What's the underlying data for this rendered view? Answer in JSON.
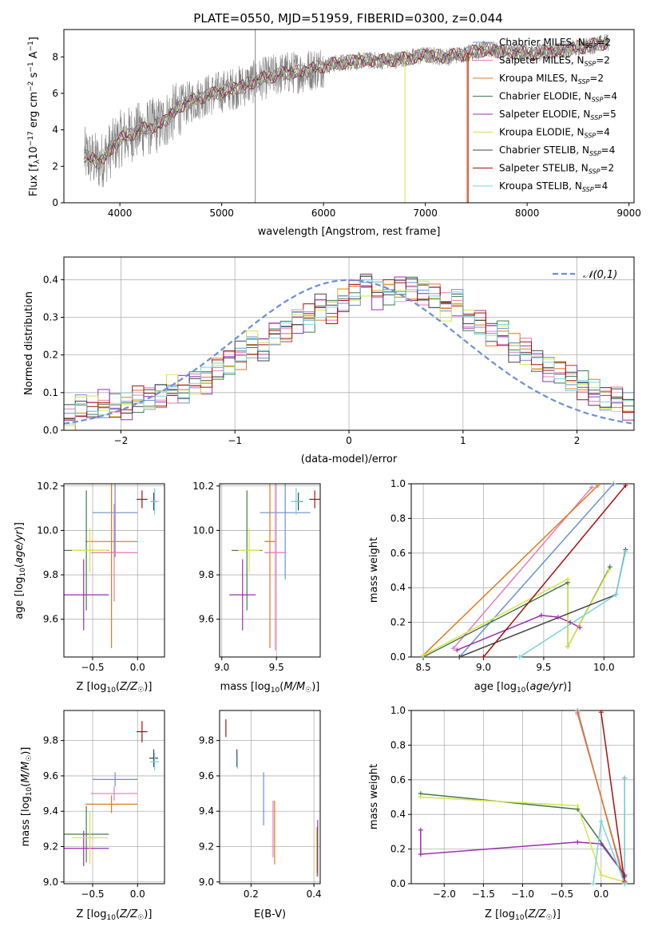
{
  "figure": {
    "title": "PLATE=0550, MJD=51959, FIBERID=0300, z=0.044"
  },
  "model_colors": {
    "Chabrier MILES": "#6a8fd8",
    "Salpeter MILES": "#e879b8",
    "Kroupa MILES": "#e07a1f",
    "Chabrier ELODIE": "#3f7a4f",
    "Salpeter ELODIE": "#9b2fae",
    "Kroupa ELODIE": "#d7e34a",
    "Chabrier STELIB": "#444444",
    "Salpeter STELIB": "#a40f0f",
    "Kroupa STELIB": "#78d3dc"
  },
  "chart_data": [
    {
      "id": "spectrum",
      "type": "line",
      "title": "PLATE=0550, MJD=51959, FIBERID=0300, z=0.044",
      "xlabel": "wavelength [Angstrom, rest frame]",
      "ylabel": "Flux [f_λ 10^-17 erg cm^-2 s^-1 A^-1]",
      "xlim": [
        3450,
        9050
      ],
      "ylim": [
        0,
        9.5
      ],
      "xticks": [
        4000,
        5000,
        6000,
        7000,
        8000,
        9000
      ],
      "yticks": [
        0,
        2,
        4,
        6,
        8
      ],
      "grid": false,
      "legend_position": "top-right",
      "data_color": "#808080",
      "data_wavelength_range": [
        3650,
        8800
      ],
      "data_continuum": {
        "x": [
          3650,
          3800,
          4000,
          4200,
          4400,
          4600,
          4800,
          5000,
          5200,
          5400,
          5600,
          5800,
          6000,
          6200,
          6400,
          6600,
          6800,
          7000,
          7200,
          7400,
          7600,
          7800,
          8000,
          8200,
          8400,
          8600,
          8800
        ],
        "y": [
          2.6,
          2.2,
          3.5,
          4.0,
          4.3,
          5.3,
          5.8,
          6.1,
          6.4,
          6.8,
          7.1,
          7.2,
          7.5,
          7.7,
          7.8,
          7.8,
          7.9,
          8.1,
          8.0,
          8.2,
          8.4,
          8.3,
          8.2,
          8.3,
          8.4,
          8.6,
          8.8
        ]
      },
      "model_spikes": [
        {
          "x": 5330,
          "ylim": [
            0,
            9.5
          ],
          "color": "#808080"
        },
        {
          "x": 6800,
          "ylim": [
            0,
            8.0
          ],
          "color": "#d7e34a"
        },
        {
          "x": 7410,
          "ylim": [
            0,
            8.2
          ],
          "color": "#e07a1f"
        },
        {
          "x": 7420,
          "ylim": [
            0,
            8.2
          ],
          "color": "#a40f0f"
        }
      ],
      "legend": [
        {
          "name": "Chabrier MILES",
          "nssp": "2",
          "color": "#6a8fd8"
        },
        {
          "name": "Salpeter MILES",
          "nssp": "2",
          "color": "#e879b8"
        },
        {
          "name": "Kroupa MILES",
          "nssp": "2",
          "color": "#e07a1f"
        },
        {
          "name": "Chabrier ELODIE",
          "nssp": "4",
          "color": "#3f7a4f"
        },
        {
          "name": "Salpeter ELODIE",
          "nssp": "5",
          "color": "#9b2fae"
        },
        {
          "name": "Kroupa ELODIE",
          "nssp": "4",
          "color": "#d7e34a"
        },
        {
          "name": "Chabrier STELIB",
          "nssp": "4",
          "color": "#444444"
        },
        {
          "name": "Salpeter STELIB",
          "nssp": "2",
          "color": "#a40f0f"
        },
        {
          "name": "Kroupa STELIB",
          "nssp": "4",
          "color": "#78d3dc"
        }
      ]
    },
    {
      "id": "residuals",
      "type": "line",
      "xlabel": "(data-model)/error",
      "ylabel": "Normed distribution",
      "xlim": [
        -2.5,
        2.5
      ],
      "ylim": [
        0,
        0.46
      ],
      "xticks": [
        -2,
        -1,
        0,
        1,
        2
      ],
      "yticks": [
        0.0,
        0.1,
        0.2,
        0.3,
        0.4
      ],
      "grid": true,
      "legend_position": "top-right",
      "reference": {
        "label": "𝒩(0,1)",
        "mu": 0,
        "sigma": 1,
        "color": "#6a8fd8"
      },
      "bin_width": 0.1,
      "bin_start": -2.5,
      "base_shape": [
        0.03,
        0.06,
        0.06,
        0.07,
        0.06,
        0.06,
        0.08,
        0.08,
        0.09,
        0.11,
        0.11,
        0.13,
        0.13,
        0.16,
        0.18,
        0.2,
        0.23,
        0.22,
        0.26,
        0.26,
        0.29,
        0.3,
        0.33,
        0.32,
        0.35,
        0.37,
        0.39,
        0.36,
        0.37,
        0.38,
        0.38,
        0.37,
        0.36,
        0.33,
        0.34,
        0.29,
        0.29,
        0.26,
        0.26,
        0.22,
        0.21,
        0.18,
        0.16,
        0.16,
        0.14,
        0.12,
        0.1,
        0.08,
        0.08,
        0.06
      ]
    },
    {
      "id": "age_vs_Z",
      "type": "scatter",
      "xlabel": "Z [log10(Z/Z☉)]",
      "ylabel": "age  [log10(age/yr)]",
      "xlim": [
        -0.82,
        0.3
      ],
      "ylim": [
        9.43,
        10.21
      ],
      "xticks": [
        -0.5,
        0.0
      ],
      "yticks": [
        9.6,
        9.8,
        10.0,
        10.2
      ],
      "grid": true,
      "points": [
        {
          "model": "Chabrier MILES",
          "color": "#6a8fd8",
          "x": -0.25,
          "y": 10.08,
          "xerr": 0.25,
          "yerr": 0.2
        },
        {
          "model": "Salpeter MILES",
          "color": "#e879b8",
          "x": -0.26,
          "y": 9.9,
          "xerr": 0.26,
          "yerr": 0.22
        },
        {
          "model": "Kroupa MILES",
          "color": "#e07a1f",
          "x": -0.29,
          "y": 9.95,
          "xerr": 0.29,
          "yerr": 0.48
        },
        {
          "model": "Chabrier ELODIE",
          "color": "#3f7a4f",
          "x": -0.57,
          "y": 9.91,
          "xerr": 0.25,
          "yerr": 0.27
        },
        {
          "model": "Salpeter ELODIE",
          "color": "#9b2fae",
          "x": -0.6,
          "y": 9.71,
          "xerr": 0.28,
          "yerr": 0.16
        },
        {
          "model": "Kroupa ELODIE",
          "color": "#d7e34a",
          "x": -0.53,
          "y": 9.91,
          "xerr": 0.2,
          "yerr": 0.1
        },
        {
          "model": "Chabrier STELIB",
          "color": "#444444",
          "x": 0.18,
          "y": 10.13,
          "xerr": 0.03,
          "yerr": 0.04
        },
        {
          "model": "Salpeter STELIB",
          "color": "#a40f0f",
          "x": 0.05,
          "y": 10.14,
          "xerr": 0.06,
          "yerr": 0.04
        },
        {
          "model": "Kroupa STELIB",
          "color": "#78d3dc",
          "x": 0.19,
          "y": 10.13,
          "xerr": 0.05,
          "yerr": 0.06
        }
      ]
    },
    {
      "id": "age_vs_mass",
      "type": "scatter",
      "xlabel": "mass [log10(M/M☉)]",
      "ylabel": "",
      "xlim": [
        8.98,
        9.9
      ],
      "ylim": [
        9.43,
        10.21
      ],
      "xticks": [
        9.0,
        9.5
      ],
      "yticks": [
        9.6,
        9.8,
        10.0,
        10.2
      ],
      "grid": true,
      "points": [
        {
          "model": "Chabrier MILES",
          "color": "#6a8fd8",
          "x": 9.58,
          "y": 10.08,
          "xerr": 0.23,
          "yerr": 0.3
        },
        {
          "model": "Salpeter MILES",
          "color": "#e879b8",
          "x": 9.49,
          "y": 9.9,
          "xerr": 0.1,
          "yerr": 0.44
        },
        {
          "model": "Kroupa MILES",
          "color": "#e07a1f",
          "x": 9.44,
          "y": 9.95,
          "xerr": 0.05,
          "yerr": 0.48
        },
        {
          "model": "Chabrier ELODIE",
          "color": "#3f7a4f",
          "x": 9.23,
          "y": 9.91,
          "xerr": 0.14,
          "yerr": 0.27
        },
        {
          "model": "Salpeter ELODIE",
          "color": "#9b2fae",
          "x": 9.19,
          "y": 9.71,
          "xerr": 0.12,
          "yerr": 0.16
        },
        {
          "model": "Kroupa ELODIE",
          "color": "#d7e34a",
          "x": 9.25,
          "y": 9.91,
          "xerr": 0.1,
          "yerr": 0.1
        },
        {
          "model": "Chabrier STELIB",
          "color": "#444444",
          "x": 9.7,
          "y": 10.13,
          "xerr": 0.04,
          "yerr": 0.04
        },
        {
          "model": "Salpeter STELIB",
          "color": "#a40f0f",
          "x": 9.85,
          "y": 10.14,
          "xerr": 0.05,
          "yerr": 0.04
        },
        {
          "model": "Kroupa STELIB",
          "color": "#78d3dc",
          "x": 9.68,
          "y": 10.13,
          "xerr": 0.05,
          "yerr": 0.06
        }
      ]
    },
    {
      "id": "massweight_vs_age",
      "type": "line",
      "xlabel": "age  [log10(age/yr)]",
      "ylabel": "mass weight",
      "xlim": [
        8.4,
        10.25
      ],
      "ylim": [
        0,
        1.0
      ],
      "xticks": [
        8.5,
        9.0,
        9.5,
        10.0
      ],
      "yticks": [
        0.0,
        0.2,
        0.4,
        0.6,
        0.8,
        1.0
      ],
      "grid": true,
      "series": [
        {
          "model": "Chabrier MILES",
          "color": "#6a8fd8",
          "x": [
            8.8,
            10.08
          ],
          "y": [
            0.0,
            1.0
          ]
        },
        {
          "model": "Salpeter MILES",
          "color": "#e879b8",
          "x": [
            8.75,
            9.9
          ],
          "y": [
            0.05,
            0.98
          ]
        },
        {
          "model": "Kroupa MILES",
          "color": "#e07a1f",
          "x": [
            8.5,
            9.95
          ],
          "y": [
            0.01,
            0.99
          ]
        },
        {
          "model": "Chabrier ELODIE",
          "color": "#3f7a4f",
          "x": [
            8.5,
            9.7,
            9.7,
            10.05
          ],
          "y": [
            0.0,
            0.43,
            0.06,
            0.52
          ]
        },
        {
          "model": "Salpeter ELODIE",
          "color": "#9b2fae",
          "x": [
            8.78,
            9.48,
            9.62,
            9.72,
            9.8
          ],
          "y": [
            0.04,
            0.24,
            0.23,
            0.2,
            0.17
          ]
        },
        {
          "model": "Kroupa ELODIE",
          "color": "#d7e34a",
          "x": [
            8.5,
            9.7,
            9.7,
            10.04
          ],
          "y": [
            0.01,
            0.45,
            0.06,
            0.5
          ]
        },
        {
          "model": "Chabrier STELIB",
          "color": "#444444",
          "x": [
            8.8,
            10.1,
            10.18
          ],
          "y": [
            0.0,
            0.36,
            0.62
          ]
        },
        {
          "model": "Salpeter STELIB",
          "color": "#a40f0f",
          "x": [
            9.0,
            10.18
          ],
          "y": [
            0.0,
            0.99
          ]
        },
        {
          "model": "Kroupa STELIB",
          "color": "#78d3dc",
          "x": [
            9.3,
            10.1,
            10.18
          ],
          "y": [
            0.0,
            0.36,
            0.61
          ]
        }
      ]
    },
    {
      "id": "mass_vs_Z",
      "type": "scatter",
      "xlabel": "Z [log10(Z/Z☉)]",
      "ylabel": "mass [log10(M/M☉)]",
      "xlim": [
        -0.82,
        0.3
      ],
      "ylim": [
        8.99,
        9.97
      ],
      "xticks": [
        -0.5,
        0.0
      ],
      "yticks": [
        9.0,
        9.2,
        9.4,
        9.6,
        9.8
      ],
      "grid": true,
      "points": [
        {
          "model": "Chabrier MILES",
          "color": "#6a8fd8",
          "x": -0.25,
          "y": 9.58,
          "xerr": 0.25,
          "yerr": 0.04
        },
        {
          "model": "Salpeter MILES",
          "color": "#e879b8",
          "x": -0.26,
          "y": 9.5,
          "xerr": 0.26,
          "yerr": 0.04
        },
        {
          "model": "Kroupa MILES",
          "color": "#e07a1f",
          "x": -0.29,
          "y": 9.44,
          "xerr": 0.29,
          "yerr": 0.05
        },
        {
          "model": "Chabrier ELODIE",
          "color": "#3f7a4f",
          "x": -0.57,
          "y": 9.27,
          "xerr": 0.25,
          "yerr": 0.16
        },
        {
          "model": "Salpeter ELODIE",
          "color": "#9b2fae",
          "x": -0.6,
          "y": 9.19,
          "xerr": 0.28,
          "yerr": 0.1
        },
        {
          "model": "Kroupa ELODIE",
          "color": "#d7e34a",
          "x": -0.53,
          "y": 9.25,
          "xerr": 0.2,
          "yerr": 0.15
        },
        {
          "model": "Chabrier STELIB",
          "color": "#444444",
          "x": 0.18,
          "y": 9.7,
          "xerr": 0.05,
          "yerr": 0.05
        },
        {
          "model": "Salpeter STELIB",
          "color": "#a40f0f",
          "x": 0.05,
          "y": 9.85,
          "xerr": 0.06,
          "yerr": 0.06
        },
        {
          "model": "Kroupa STELIB",
          "color": "#78d3dc",
          "x": 0.19,
          "y": 9.68,
          "xerr": 0.05,
          "yerr": 0.05
        }
      ]
    },
    {
      "id": "mass_vs_EBV",
      "type": "scatter",
      "xlabel": "E(B-V)",
      "ylabel": "",
      "xlim": [
        0.1,
        0.42
      ],
      "ylim": [
        8.99,
        9.97
      ],
      "xticks": [
        0.2,
        0.4
      ],
      "yticks": [
        9.0,
        9.2,
        9.4,
        9.6,
        9.8
      ],
      "grid": true,
      "points": [
        {
          "model": "Chabrier MILES",
          "color": "#6a8fd8",
          "x": 0.24,
          "y": 9.47,
          "xerr": 0,
          "yerr": 0.15
        },
        {
          "model": "Salpeter MILES",
          "color": "#e879b8",
          "x": 0.27,
          "y": 9.3,
          "xerr": 0,
          "yerr": 0.16
        },
        {
          "model": "Kroupa MILES",
          "color": "#e07a1f",
          "x": 0.275,
          "y": 9.28,
          "xerr": 0,
          "yerr": 0.18
        },
        {
          "model": "Chabrier ELODIE",
          "color": "#3f7a4f",
          "x": 0.41,
          "y": 9.18,
          "xerr": 0,
          "yerr": 0.13
        },
        {
          "model": "Salpeter ELODIE",
          "color": "#9b2fae",
          "x": 0.412,
          "y": 9.19,
          "xerr": 0,
          "yerr": 0.16
        },
        {
          "model": "Kroupa ELODIE",
          "color": "#d7e34a",
          "x": 0.408,
          "y": 9.17,
          "xerr": 0,
          "yerr": 0.14
        },
        {
          "model": "Chabrier STELIB",
          "color": "#444444",
          "x": 0.155,
          "y": 9.7,
          "xerr": 0,
          "yerr": 0.05
        },
        {
          "model": "Salpeter STELIB",
          "color": "#a40f0f",
          "x": 0.12,
          "y": 9.87,
          "xerr": 0,
          "yerr": 0.05
        },
        {
          "model": "Kroupa STELIB",
          "color": "#78d3dc",
          "x": 0.157,
          "y": 9.68,
          "xerr": 0,
          "yerr": 0.04
        }
      ]
    },
    {
      "id": "massweight_vs_Z",
      "type": "line",
      "xlabel": "Z [log10(Z/Z☉)]",
      "ylabel": "mass weight",
      "xlim": [
        -2.42,
        0.42
      ],
      "ylim": [
        0,
        1.0
      ],
      "xticks": [
        -2.0,
        -1.5,
        -1.0,
        -0.5,
        0.0
      ],
      "yticks": [
        0.0,
        0.2,
        0.4,
        0.6,
        0.8,
        1.0
      ],
      "grid": true,
      "series": [
        {
          "model": "Chabrier MILES",
          "color": "#6a8fd8",
          "x": [
            -0.3,
            0.3
          ],
          "y": [
            1.0,
            0.0
          ]
        },
        {
          "model": "Salpeter MILES",
          "color": "#e879b8",
          "x": [
            -0.3,
            0.3
          ],
          "y": [
            0.98,
            0.02
          ]
        },
        {
          "model": "Kroupa MILES",
          "color": "#e07a1f",
          "x": [
            -0.3,
            0.3
          ],
          "y": [
            0.99,
            0.01
          ]
        },
        {
          "model": "Chabrier ELODIE",
          "color": "#3f7a4f",
          "x": [
            -2.3,
            -0.3,
            0.3
          ],
          "y": [
            0.52,
            0.43,
            0.05
          ]
        },
        {
          "model": "Salpeter ELODIE",
          "color": "#9b2fae",
          "x": [
            -2.3,
            -2.3,
            -0.3,
            0.0,
            0.3
          ],
          "y": [
            0.31,
            0.17,
            0.24,
            0.23,
            0.05
          ]
        },
        {
          "model": "Kroupa ELODIE",
          "color": "#d7e34a",
          "x": [
            -2.3,
            -0.3,
            0.0,
            0.3
          ],
          "y": [
            0.5,
            0.45,
            0.05,
            0.01
          ]
        },
        {
          "model": "Chabrier STELIB",
          "color": "#444444",
          "x": [
            0.3,
            0.3
          ],
          "y": [
            0.61,
            0.04
          ]
        },
        {
          "model": "Salpeter STELIB",
          "color": "#a40f0f",
          "x": [
            0.0,
            0.3
          ],
          "y": [
            0.99,
            0.01
          ]
        },
        {
          "model": "Kroupa STELIB",
          "color": "#78d3dc",
          "x": [
            -0.1,
            0.0,
            0.3,
            0.3
          ],
          "y": [
            0.0,
            0.36,
            0.0,
            0.61
          ]
        }
      ]
    }
  ]
}
